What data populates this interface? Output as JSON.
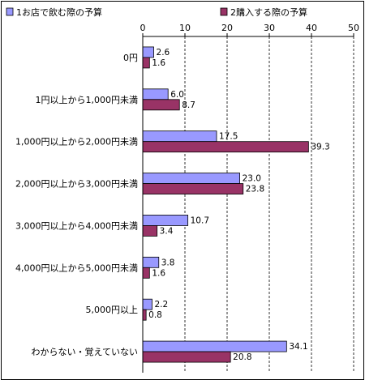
{
  "chart_data": {
    "type": "bar",
    "orientation": "horizontal",
    "categories": [
      "0円",
      "1円以上から1,000円未満",
      "1,000円以上から2,000円未満",
      "2,000円以上から3,000円未満",
      "3,000円以上から4,000円未満",
      "4,000円以上から5,000円未満",
      "5,000円以上",
      "わからない・覚えていない"
    ],
    "series": [
      {
        "name": "1お店で飲む際の予算",
        "color": "#9999ff",
        "values": [
          2.6,
          6.0,
          17.5,
          23.0,
          10.7,
          3.8,
          2.2,
          34.1
        ]
      },
      {
        "name": "2購入する際の予算",
        "color": "#993366",
        "values": [
          1.6,
          8.7,
          39.3,
          23.8,
          3.4,
          1.6,
          0.8,
          20.8
        ]
      }
    ],
    "x_ticks": [
      0,
      10,
      20,
      30,
      40,
      50
    ],
    "xlim": [
      0,
      50
    ],
    "grid": "vertical dashed",
    "legend": "top",
    "title": "",
    "xlabel": "",
    "ylabel": ""
  }
}
